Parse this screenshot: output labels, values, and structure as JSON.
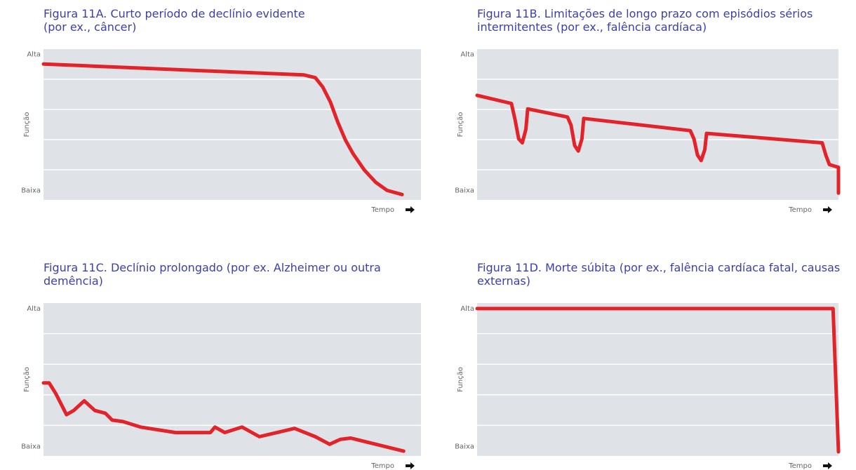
{
  "chart_data": [
    {
      "type": "line",
      "title": "Figura 11A. Curto período de declínio evidente (por ex., câncer)",
      "y_label": "Função",
      "x_label": "Tempo",
      "ylim": [
        -7,
        104
      ],
      "yticks": [
        {
          "value": 100,
          "label": "Alta"
        },
        {
          "value": 0,
          "label": "Baixa"
        }
      ],
      "xlim": [
        0,
        100
      ],
      "series": [
        {
          "color": "#e3232a",
          "x": [
            0,
            69,
            72,
            74,
            76,
            78,
            80,
            82,
            85,
            88,
            91,
            95
          ],
          "values": [
            93,
            85,
            83,
            76,
            65,
            50,
            37,
            27,
            15,
            6,
            0,
            -3
          ]
        }
      ]
    },
    {
      "type": "line",
      "title": "Figura 11B. Limitações de longo prazo com episódios sérios intermitentes (por ex., falência cardíaca)",
      "y_label": "Função",
      "x_label": "Tempo",
      "ylim": [
        -7,
        104
      ],
      "yticks": [
        {
          "value": 100,
          "label": "Alta"
        },
        {
          "value": 0,
          "label": "Baixa"
        }
      ],
      "xlim": [
        0,
        100
      ],
      "series": [
        {
          "color": "#e3232a",
          "x": [
            0,
            9.5,
            10.5,
            11.5,
            12.5,
            13.5,
            14,
            25,
            26,
            27,
            28,
            29,
            29.5,
            59,
            60,
            61,
            62,
            63,
            63.5,
            95.5,
            96.5,
            97.5,
            100,
            100
          ],
          "values": [
            70,
            64,
            52,
            38,
            35,
            45,
            60,
            54,
            48,
            33,
            29,
            38,
            53,
            44,
            38,
            26,
            22,
            30,
            42,
            35,
            26,
            19,
            17,
            -2
          ]
        }
      ]
    },
    {
      "type": "line",
      "title": "Figura 11C. Declínio prolongado (por ex. Alzheimer ou outra demência)",
      "y_label": "Função",
      "x_label": "Tempo",
      "ylim": [
        -7,
        104
      ],
      "yticks": [
        {
          "value": 100,
          "label": "Alta"
        },
        {
          "value": 0,
          "label": "Baixa"
        }
      ],
      "xlim": [
        0,
        100
      ],
      "series": [
        {
          "color": "#e3232a",
          "x": [
            0,
            1.5,
            3.3,
            6.1,
            8,
            10.8,
            13.6,
            16.4,
            18.2,
            21,
            25.7,
            35,
            44.2,
            45.4,
            48,
            52.6,
            57.2,
            66.5,
            72,
            75.8,
            78.6,
            81.4,
            95.4
          ],
          "values": [
            46,
            46,
            38,
            23,
            26,
            33,
            26,
            24,
            19,
            18,
            14,
            10,
            10,
            14,
            10,
            14,
            7,
            13,
            7,
            1.5,
            5,
            6,
            -3.5
          ]
        }
      ]
    },
    {
      "type": "line",
      "title": "Figura 11D. Morte súbita (por ex., falência cardíaca fatal, causas externas)",
      "y_label": "Função",
      "x_label": "Tempo",
      "ylim": [
        -7,
        104
      ],
      "yticks": [
        {
          "value": 100,
          "label": "Alta"
        },
        {
          "value": 0,
          "label": "Baixa"
        }
      ],
      "xlim": [
        0,
        100
      ],
      "series": [
        {
          "color": "#e3232a",
          "x": [
            0,
            98.5,
            100
          ],
          "values": [
            100,
            100,
            -4
          ]
        }
      ]
    }
  ]
}
